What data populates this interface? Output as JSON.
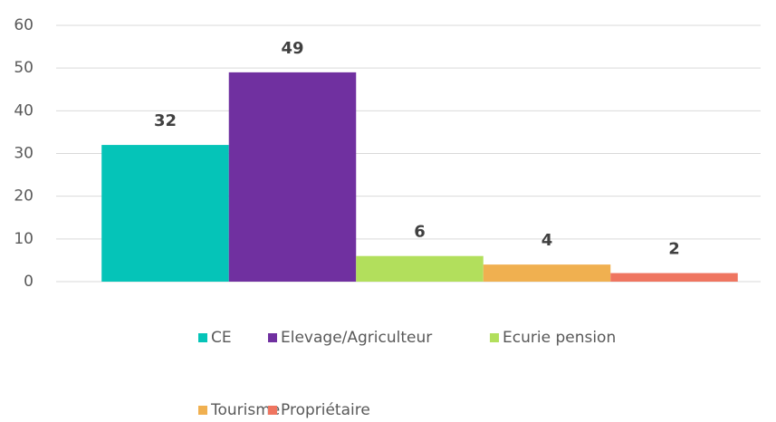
{
  "chart_data": {
    "type": "bar",
    "categories": [
      null
    ],
    "series": [
      {
        "name": "CE",
        "color": "#05c4b8",
        "values": [
          32
        ]
      },
      {
        "name": "Elevage/Agriculteur",
        "color": "#7030a0",
        "values": [
          49
        ]
      },
      {
        "name": "Ecurie pension",
        "color": "#b2df5c",
        "values": [
          6
        ]
      },
      {
        "name": "Tourisme",
        "color": "#f0b050",
        "values": [
          4
        ]
      },
      {
        "name": "Propriétaire",
        "color": "#ef7560",
        "values": [
          2
        ]
      }
    ],
    "ylim": [
      0,
      60
    ],
    "yticks": [
      0,
      10,
      20,
      30,
      40,
      50,
      60
    ],
    "grid": true
  }
}
